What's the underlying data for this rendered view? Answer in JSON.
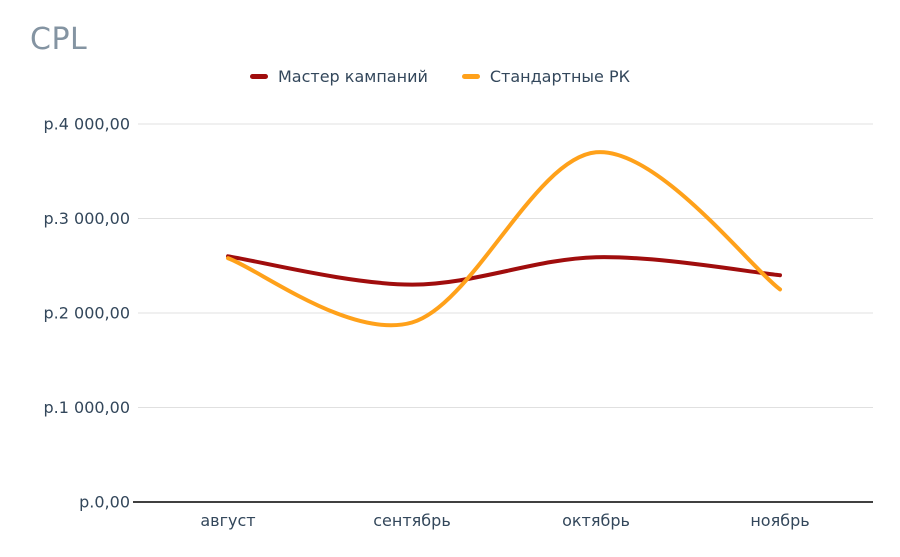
{
  "title": "CPL",
  "chart_data": {
    "type": "line",
    "title": "CPL",
    "smooth": true,
    "grid": true,
    "legend_position": "top-center",
    "categories": [
      "август",
      "сентябрь",
      "октябрь",
      "ноябрь"
    ],
    "series": [
      {
        "name": "Мастер кампаний",
        "color": "#A00D0D",
        "values": [
          2600,
          2300,
          2590,
          2400
        ]
      },
      {
        "name": "Стандартные РК",
        "color": "#FFA11A",
        "values": [
          2580,
          1900,
          3700,
          2250
        ]
      }
    ],
    "ylim": [
      0,
      4000
    ],
    "y_ticks": [
      4000,
      3000,
      2000,
      1000,
      0
    ],
    "y_tick_labels": [
      "р.4 000,00",
      "р.3 000,00",
      "р.2 000,00",
      "р.1 000,00",
      "р.0,00"
    ],
    "currency_prefix": "р.",
    "colors": {
      "title_text": "#8494A2",
      "axis_text": "#33475B",
      "gridline": "#E0E0E0",
      "axis_line": "#404040",
      "background": "#FFFFFF"
    }
  }
}
